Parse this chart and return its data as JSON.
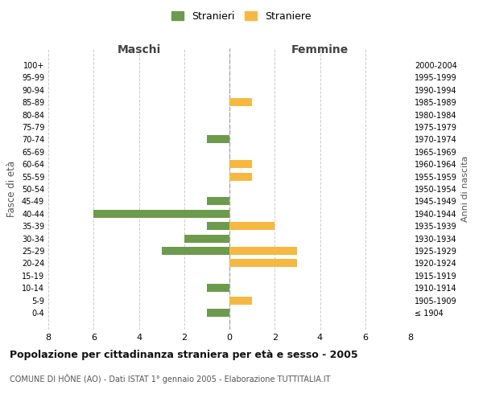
{
  "age_groups": [
    "100+",
    "95-99",
    "90-94",
    "85-89",
    "80-84",
    "75-79",
    "70-74",
    "65-69",
    "60-64",
    "55-59",
    "50-54",
    "45-49",
    "40-44",
    "35-39",
    "30-34",
    "25-29",
    "20-24",
    "15-19",
    "10-14",
    "5-9",
    "0-4"
  ],
  "birth_years": [
    "≤ 1904",
    "1905-1909",
    "1910-1914",
    "1915-1919",
    "1920-1924",
    "1925-1929",
    "1930-1934",
    "1935-1939",
    "1940-1944",
    "1945-1949",
    "1950-1954",
    "1955-1959",
    "1960-1964",
    "1965-1969",
    "1970-1974",
    "1975-1979",
    "1980-1984",
    "1985-1989",
    "1990-1994",
    "1995-1999",
    "2000-2004"
  ],
  "maschi": [
    0,
    0,
    0,
    0,
    0,
    0,
    1,
    0,
    0,
    0,
    0,
    1,
    6,
    1,
    2,
    3,
    0,
    0,
    1,
    0,
    1
  ],
  "femmine": [
    0,
    0,
    0,
    1,
    0,
    0,
    0,
    0,
    1,
    1,
    0,
    0,
    0,
    2,
    0,
    3,
    3,
    0,
    0,
    1,
    0
  ],
  "color_maschi": "#6d9b4e",
  "color_femmine": "#f5b942",
  "title": "Popolazione per cittadinanza straniera per età e sesso - 2005",
  "subtitle": "COMUNE DI HÔNE (AO) - Dati ISTAT 1° gennaio 2005 - Elaborazione TUTTITALIA.IT",
  "xlabel_left": "Maschi",
  "xlabel_right": "Femmine",
  "ylabel_left": "Fasce di età",
  "ylabel_right": "Anni di nascita",
  "legend_maschi": "Stranieri",
  "legend_femmine": "Straniere",
  "xlim": 8,
  "background_color": "#ffffff",
  "grid_color": "#cccccc"
}
